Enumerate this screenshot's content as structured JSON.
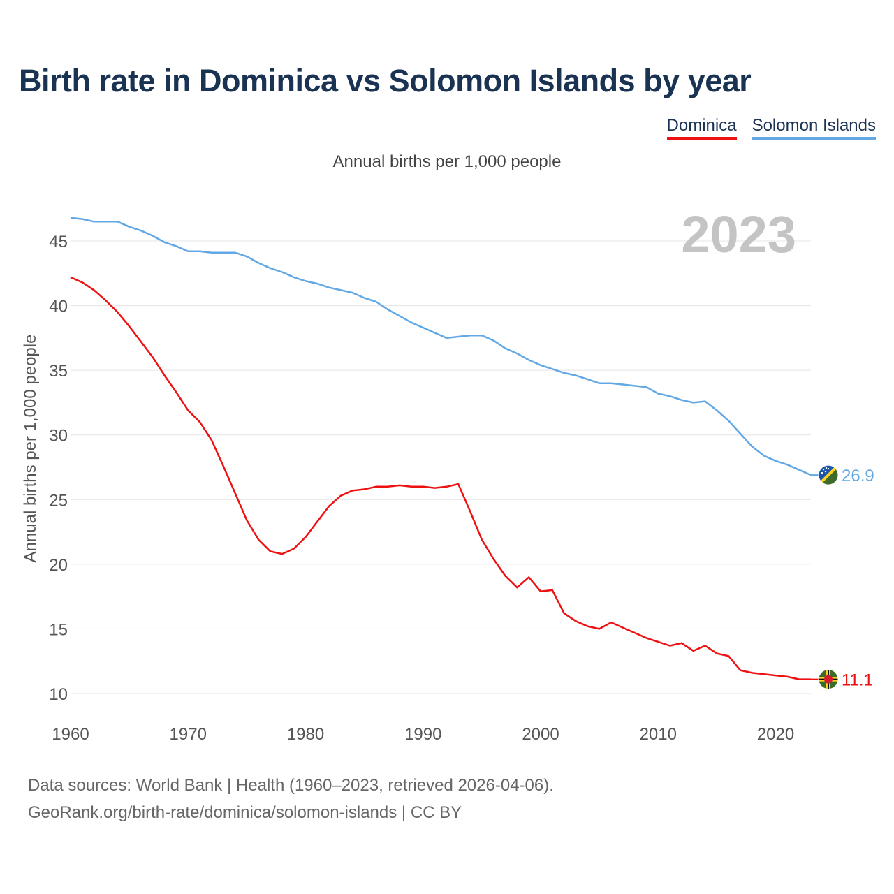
{
  "title": "Birth rate in Dominica vs Solomon Islands by year",
  "subtitle": "Annual births per 1,000 people",
  "year_label": "2023",
  "legend": [
    {
      "name": "Dominica",
      "color": "#ee1111"
    },
    {
      "name": "Solomon Islands",
      "color": "#62a8e5"
    }
  ],
  "footer": {
    "line1": "Data sources: World Bank | Health (1960–2023, retrieved 2026-04-06).",
    "line2": "GeoRank.org/birth-rate/dominica/solomon-islands | CC BY"
  },
  "chart_data": {
    "type": "line",
    "title": "Birth rate in Dominica vs Solomon Islands by year",
    "xlabel": "",
    "ylabel": "Annual births per 1,000 people",
    "xlim": [
      1960,
      2023
    ],
    "ylim": [
      10,
      47
    ],
    "x_ticks": [
      1960,
      1970,
      1980,
      1990,
      2000,
      2010,
      2020
    ],
    "y_ticks": [
      10,
      15,
      20,
      25,
      30,
      35,
      40,
      45
    ],
    "grid": true,
    "legend_position": "top-right",
    "x": [
      1960,
      1961,
      1962,
      1963,
      1964,
      1965,
      1966,
      1967,
      1968,
      1969,
      1970,
      1971,
      1972,
      1973,
      1974,
      1975,
      1976,
      1977,
      1978,
      1979,
      1980,
      1981,
      1982,
      1983,
      1984,
      1985,
      1986,
      1987,
      1988,
      1989,
      1990,
      1991,
      1992,
      1993,
      1994,
      1995,
      1996,
      1997,
      1998,
      1999,
      2000,
      2001,
      2002,
      2003,
      2004,
      2005,
      2006,
      2007,
      2008,
      2009,
      2010,
      2011,
      2012,
      2013,
      2014,
      2015,
      2016,
      2017,
      2018,
      2019,
      2020,
      2021,
      2022,
      2023
    ],
    "series": [
      {
        "name": "Dominica",
        "color": "#ee1111",
        "end_label": "11.1",
        "values": [
          42.2,
          41.8,
          41.2,
          40.4,
          39.5,
          38.4,
          37.2,
          36.0,
          34.6,
          33.3,
          31.9,
          31.0,
          29.6,
          27.6,
          25.5,
          23.4,
          21.9,
          21.0,
          20.8,
          21.2,
          22.1,
          23.3,
          24.5,
          25.3,
          25.7,
          25.8,
          26.0,
          26.0,
          26.1,
          26.0,
          26.0,
          25.9,
          26.0,
          26.2,
          24.1,
          21.9,
          20.4,
          19.1,
          18.2,
          19.0,
          17.9,
          18.0,
          16.2,
          15.6,
          15.2,
          15.0,
          15.5,
          15.1,
          14.7,
          14.3,
          14.0,
          13.7,
          13.9,
          13.3,
          13.7,
          13.1,
          12.9,
          11.8,
          11.6,
          11.5,
          11.4,
          11.3,
          11.1,
          11.1
        ]
      },
      {
        "name": "Solomon Islands",
        "color": "#62a8e5",
        "end_label": "26.9",
        "values": [
          46.8,
          46.7,
          46.5,
          46.5,
          46.5,
          46.1,
          45.8,
          45.4,
          44.9,
          44.6,
          44.2,
          44.2,
          44.1,
          44.1,
          44.1,
          43.8,
          43.3,
          42.9,
          42.6,
          42.2,
          41.9,
          41.7,
          41.4,
          41.2,
          41.0,
          40.6,
          40.3,
          39.7,
          39.2,
          38.7,
          38.3,
          37.9,
          37.5,
          37.6,
          37.7,
          37.7,
          37.3,
          36.7,
          36.3,
          35.8,
          35.4,
          35.1,
          34.8,
          34.6,
          34.3,
          34.0,
          34.0,
          33.9,
          33.8,
          33.7,
          33.2,
          33.0,
          32.7,
          32.5,
          32.6,
          31.9,
          31.1,
          30.1,
          29.1,
          28.4,
          28.0,
          27.7,
          27.3,
          26.9
        ]
      }
    ]
  }
}
